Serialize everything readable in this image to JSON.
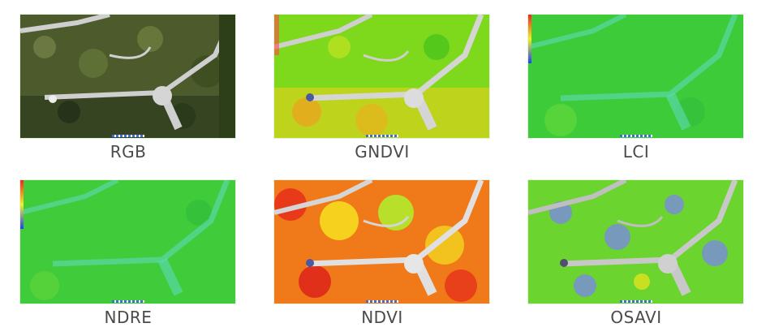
{
  "panels": [
    {
      "label": "RGB",
      "kind": "rgb"
    },
    {
      "label": "GNDVI",
      "kind": "gndvi"
    },
    {
      "label": "LCI",
      "kind": "lci"
    },
    {
      "label": "NDRE",
      "kind": "ndre"
    },
    {
      "label": "NDVI",
      "kind": "ndvi"
    },
    {
      "label": "OSAVI",
      "kind": "osavi"
    }
  ],
  "colors": {
    "rgb_base": "#4c5a2c",
    "gndvi_base": "#7ed81c",
    "lci_base": "#3ecb3a",
    "ndre_base": "#3fcb3a",
    "ndvi_base": "#f07a1a",
    "osavi_base": "#6bd42e",
    "path": "#cfcfcf"
  }
}
